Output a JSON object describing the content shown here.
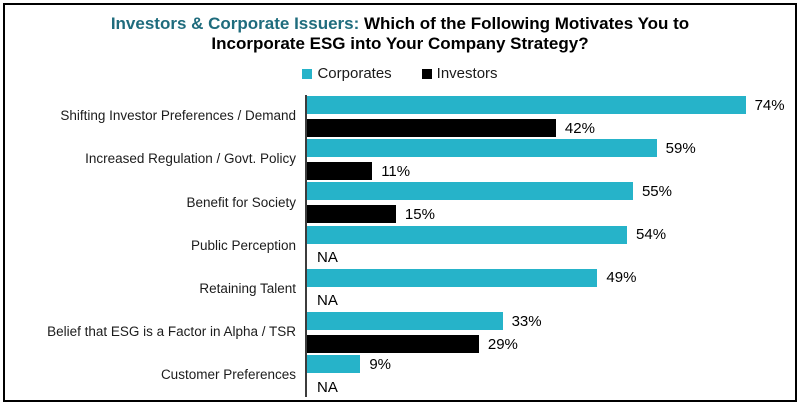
{
  "title": {
    "accent": "Investors & Corporate Issuers:",
    "line1_rest": " Which of the Following Motivates You to",
    "line2": "Incorporate ESG into Your Company Strategy?",
    "accent_color": "#1F6C7D"
  },
  "chart_data": {
    "type": "bar",
    "orientation": "horizontal",
    "title": "Investors & Corporate Issuers: Which of the Following Motivates You to Incorporate ESG into Your Company Strategy?",
    "categories": [
      "Shifting Investor Preferences / Demand",
      "Increased Regulation / Govt. Policy",
      "Benefit for Society",
      "Public Perception",
      "Retaining Talent",
      "Belief that ESG is a Factor in Alpha / TSR",
      "Customer Preferences"
    ],
    "series": [
      {
        "name": "Corporates",
        "color": "#26B3C9",
        "values": [
          74,
          59,
          55,
          54,
          49,
          33,
          9
        ]
      },
      {
        "name": "Investors",
        "color": "#000000",
        "values": [
          42,
          11,
          15,
          null,
          null,
          29,
          null
        ]
      }
    ],
    "value_suffix": "%",
    "na_label": "NA",
    "xlim": [
      0,
      82
    ],
    "grid": false,
    "legend_position": "top",
    "axis_line_color": "#3c3c3c",
    "bar_color_accent": "#26B3C9"
  }
}
